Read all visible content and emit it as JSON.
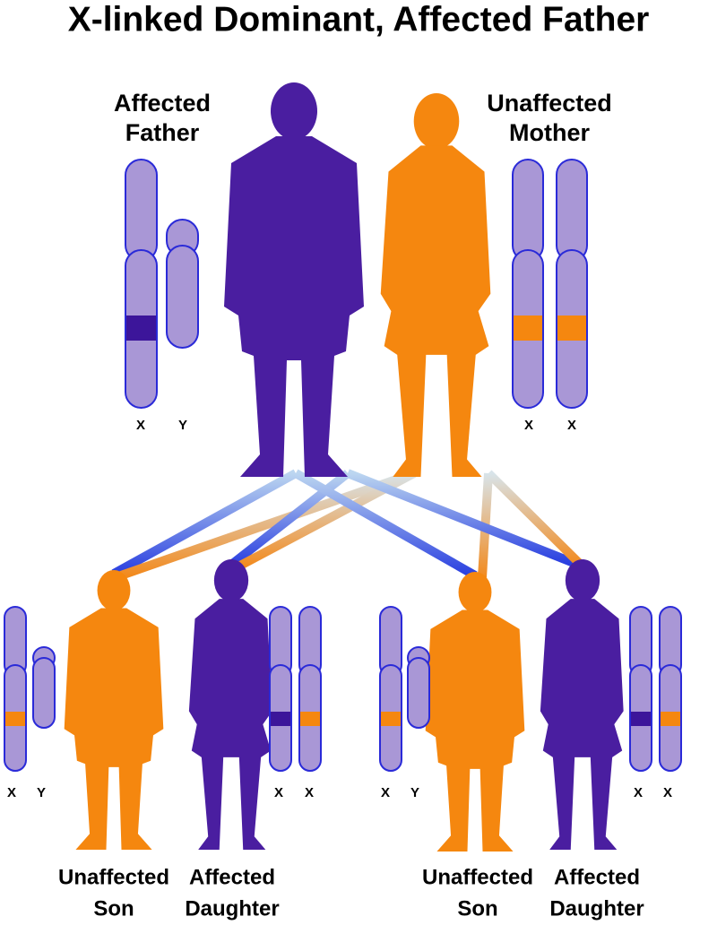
{
  "title": "X-linked Dominant, Affected Father",
  "parents": [
    {
      "label": [
        "Affected",
        "Father"
      ],
      "chromosomes": [
        "X",
        "Y"
      ]
    },
    {
      "label": [
        "Unaffected",
        "Mother"
      ],
      "chromosomes": [
        "X",
        "X"
      ]
    }
  ],
  "children": [
    {
      "label": [
        "Unaffected",
        "Son"
      ],
      "chromosomes": [
        "X",
        "Y"
      ]
    },
    {
      "label": [
        "Affected",
        "Daughter"
      ],
      "chromosomes": [
        "X",
        "X"
      ]
    },
    {
      "label": [
        "Unaffected",
        "Son"
      ],
      "chromosomes": [
        "X",
        "Y"
      ]
    },
    {
      "label": [
        "Affected",
        "Daughter"
      ],
      "chromosomes": [
        "X",
        "X"
      ]
    }
  ]
}
